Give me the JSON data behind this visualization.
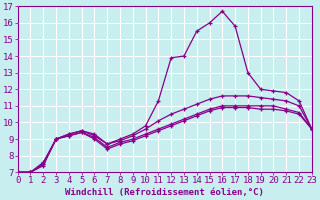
{
  "xlabel": "Windchill (Refroidissement éolien,°C)",
  "bg_color": "#c8eef0",
  "line_color": "#880088",
  "grid_color": "#ffffff",
  "xlim": [
    0,
    23
  ],
  "ylim": [
    7,
    17
  ],
  "xticks": [
    0,
    1,
    2,
    3,
    4,
    5,
    6,
    7,
    8,
    9,
    10,
    11,
    12,
    13,
    14,
    15,
    16,
    17,
    18,
    19,
    20,
    21,
    22,
    23
  ],
  "yticks": [
    7,
    8,
    9,
    10,
    11,
    12,
    13,
    14,
    15,
    16,
    17
  ],
  "line1_y": [
    7.0,
    7.0,
    7.5,
    9.0,
    9.3,
    9.5,
    9.3,
    8.7,
    9.0,
    9.3,
    9.8,
    11.3,
    13.9,
    14.0,
    15.5,
    16.0,
    16.7,
    15.8,
    13.0,
    12.0,
    11.9,
    11.8,
    11.3,
    9.6
  ],
  "line2_y": [
    7.0,
    7.0,
    7.5,
    9.0,
    9.2,
    9.4,
    9.1,
    8.5,
    8.8,
    9.0,
    9.3,
    9.6,
    9.9,
    10.2,
    10.5,
    10.8,
    11.0,
    11.0,
    11.0,
    11.0,
    11.0,
    10.8,
    10.6,
    9.6
  ],
  "line3_y": [
    7.0,
    7.0,
    7.6,
    9.0,
    9.3,
    9.5,
    9.2,
    8.7,
    8.9,
    9.2,
    9.6,
    10.1,
    10.5,
    10.8,
    11.1,
    11.4,
    11.6,
    11.6,
    11.6,
    11.5,
    11.4,
    11.3,
    11.0,
    9.6
  ],
  "line4_y": [
    7.0,
    7.0,
    7.4,
    9.0,
    9.2,
    9.4,
    9.0,
    8.4,
    8.7,
    8.9,
    9.2,
    9.5,
    9.8,
    10.1,
    10.4,
    10.7,
    10.9,
    10.9,
    10.9,
    10.8,
    10.8,
    10.7,
    10.5,
    9.6
  ],
  "font_size": 6.5,
  "xlabel_font_size": 6.5
}
